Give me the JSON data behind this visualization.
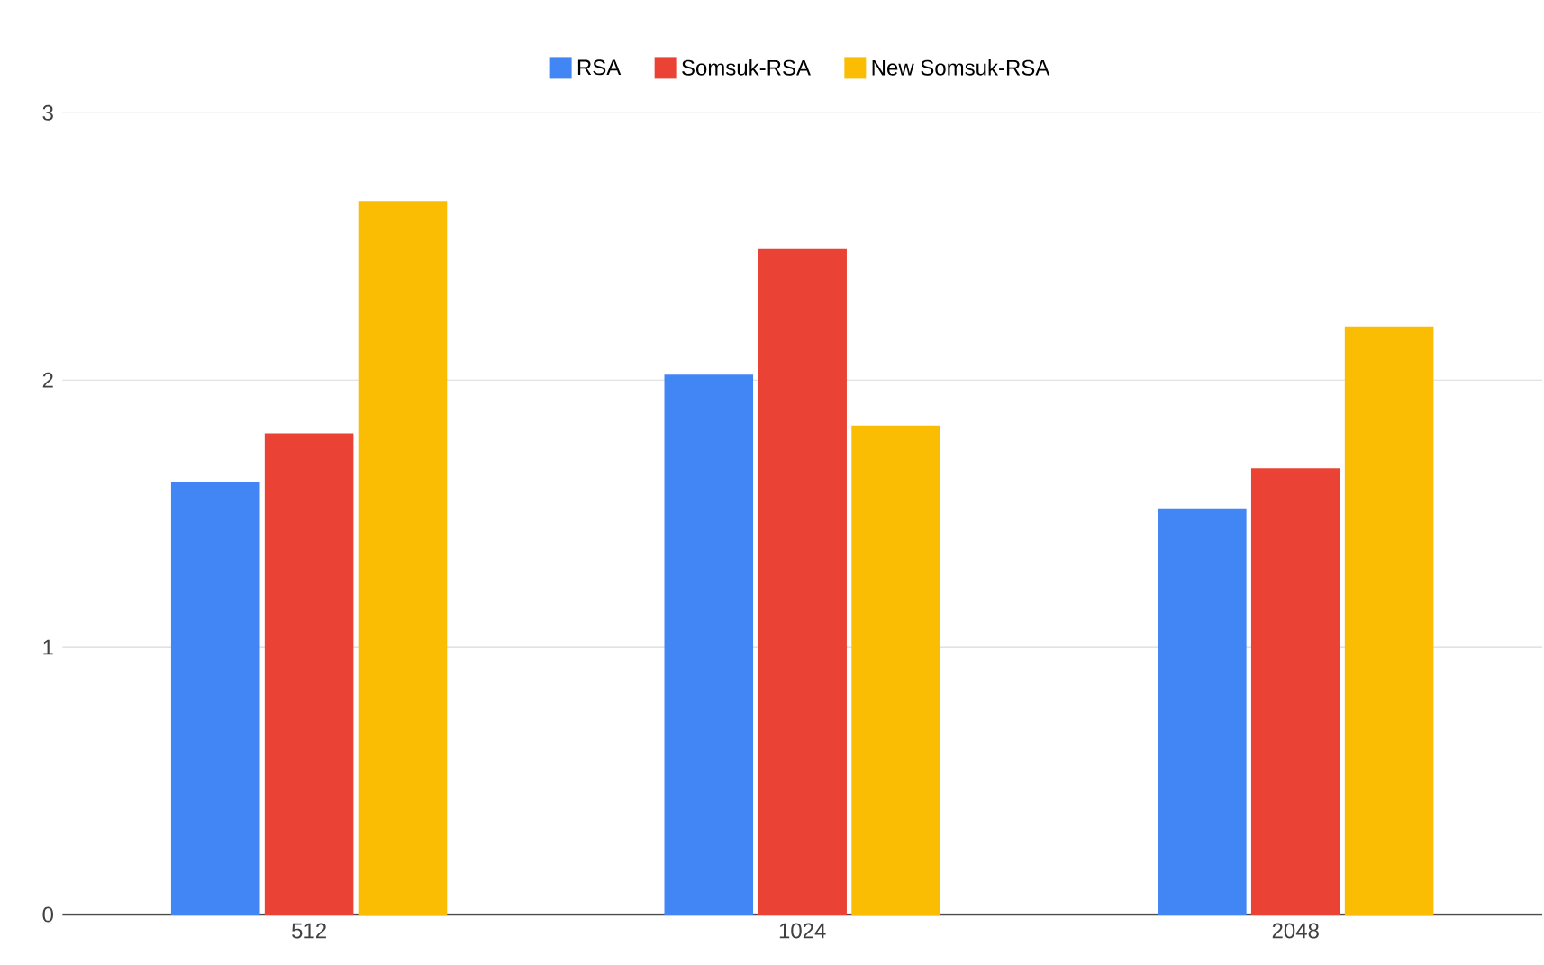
{
  "chart_data": {
    "type": "bar",
    "categories": [
      "512",
      "1024",
      "2048"
    ],
    "series": [
      {
        "name": "RSA",
        "color": "#4285f4",
        "values": [
          1.62,
          2.02,
          1.52
        ]
      },
      {
        "name": "Somsuk-RSA",
        "color": "#ea4335",
        "values": [
          1.8,
          2.49,
          1.67
        ]
      },
      {
        "name": "New Somsuk-RSA",
        "color": "#fbbc04",
        "values": [
          2.67,
          1.83,
          2.2
        ]
      }
    ],
    "ylim": [
      0,
      3
    ],
    "yticks": [
      0,
      1,
      2,
      3
    ],
    "grid": "y",
    "legend": "top"
  }
}
